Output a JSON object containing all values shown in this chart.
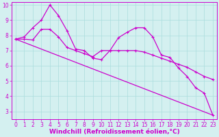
{
  "background_color": "#d4f0f0",
  "line_color": "#cc00cc",
  "grid_color": "#aadddd",
  "xlabel": "Windchill (Refroidissement éolien,°C)",
  "ylim": [
    2.5,
    10.2
  ],
  "xlim": [
    -0.5,
    23.5
  ],
  "yticks": [
    3,
    4,
    5,
    6,
    7,
    8,
    9,
    10
  ],
  "xticks": [
    0,
    1,
    2,
    3,
    4,
    5,
    6,
    7,
    8,
    9,
    10,
    11,
    12,
    13,
    14,
    15,
    16,
    17,
    18,
    19,
    20,
    21,
    22,
    23
  ],
  "series1_wavy": {
    "x": [
      0,
      1,
      2,
      3,
      4,
      5,
      6,
      7,
      8,
      9,
      10,
      11,
      12,
      13,
      14,
      15,
      16,
      17,
      18,
      19,
      20,
      21,
      22,
      23
    ],
    "y": [
      7.75,
      7.9,
      8.5,
      9.0,
      10.0,
      9.3,
      8.3,
      7.1,
      7.0,
      6.5,
      6.4,
      7.0,
      7.85,
      8.2,
      8.5,
      8.5,
      7.9,
      6.7,
      6.55,
      5.85,
      5.3,
      4.55,
      4.2,
      2.75
    ]
  },
  "series2_diagonal": {
    "x": [
      0,
      23
    ],
    "y": [
      7.75,
      2.75
    ]
  },
  "series3_flat": {
    "x": [
      0,
      1,
      2,
      3,
      4,
      5,
      6,
      7,
      8,
      9,
      10,
      11,
      12,
      13,
      14,
      15,
      16,
      17,
      18,
      19,
      20,
      21,
      22,
      23
    ],
    "y": [
      7.75,
      7.75,
      7.7,
      8.4,
      8.4,
      7.9,
      7.2,
      7.0,
      6.8,
      6.6,
      7.0,
      7.0,
      7.0,
      7.0,
      7.0,
      6.9,
      6.7,
      6.5,
      6.3,
      6.1,
      5.9,
      5.6,
      5.3,
      5.1
    ]
  },
  "xlabel_color": "#cc00cc",
  "xlabel_fontsize": 6.5,
  "tick_fontsize": 5.5,
  "tick_color": "#cc00cc",
  "linewidth": 0.9,
  "markersize": 2.5,
  "figsize": [
    3.2,
    2.0
  ],
  "dpi": 100
}
